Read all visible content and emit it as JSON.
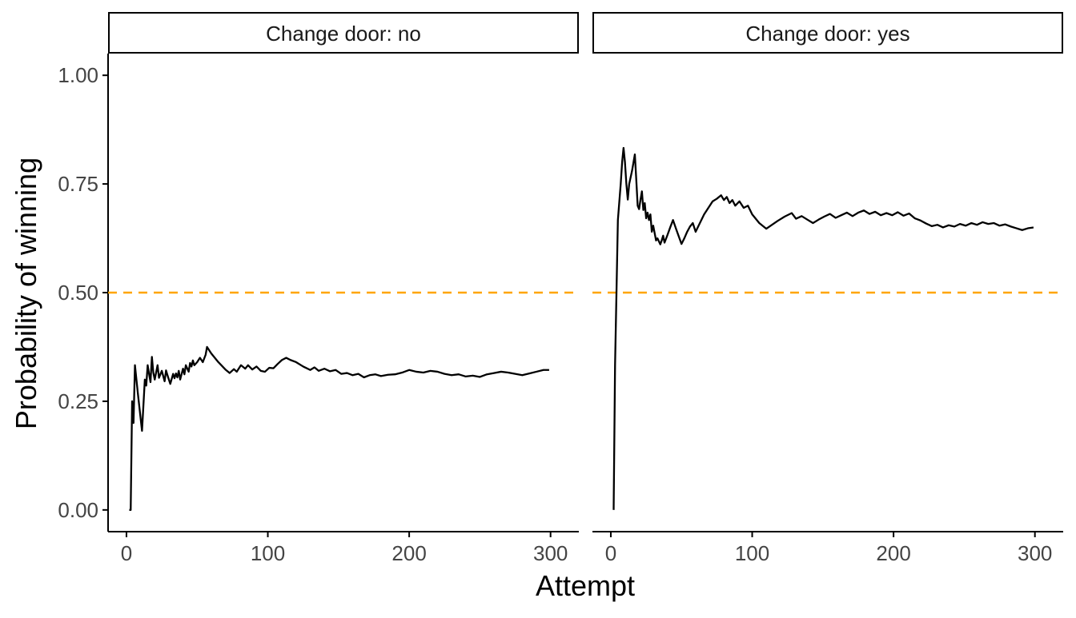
{
  "chart_data": {
    "type": "line",
    "xlabel": "Attempt",
    "ylabel": "Probability of winning",
    "xlim": [
      -13,
      320
    ],
    "ylim": [
      -0.05,
      1.05
    ],
    "x_ticks": [
      0,
      100,
      200,
      300
    ],
    "x_tick_labels": [
      "0",
      "100",
      "200",
      "300"
    ],
    "y_ticks": [
      0,
      0.25,
      0.5,
      0.75,
      1.0
    ],
    "y_tick_labels": [
      "0.00",
      "0.25",
      "0.50",
      "0.75",
      "1.00"
    ],
    "grid": false,
    "reference_line": {
      "y": 0.5,
      "color": "#FFA500",
      "style": "dashed"
    },
    "line_color": "#000000",
    "panels": [
      {
        "strip": "Change door: no",
        "points": [
          [
            2,
            0.0
          ],
          [
            3,
            0.0
          ],
          [
            4,
            0.25
          ],
          [
            5,
            0.2
          ],
          [
            6,
            0.333
          ],
          [
            8,
            0.27
          ],
          [
            11,
            0.182
          ],
          [
            13,
            0.3
          ],
          [
            14,
            0.286
          ],
          [
            15,
            0.333
          ],
          [
            16,
            0.313
          ],
          [
            17,
            0.294
          ],
          [
            18,
            0.352
          ],
          [
            19,
            0.316
          ],
          [
            20,
            0.3
          ],
          [
            22,
            0.333
          ],
          [
            23,
            0.304
          ],
          [
            25,
            0.32
          ],
          [
            26,
            0.308
          ],
          [
            27,
            0.296
          ],
          [
            28,
            0.321
          ],
          [
            29,
            0.31
          ],
          [
            30,
            0.3
          ],
          [
            31,
            0.29
          ],
          [
            33,
            0.313
          ],
          [
            34,
            0.303
          ],
          [
            35,
            0.314
          ],
          [
            36,
            0.305
          ],
          [
            37,
            0.32
          ],
          [
            38,
            0.3
          ],
          [
            40,
            0.325
          ],
          [
            41,
            0.312
          ],
          [
            42,
            0.333
          ],
          [
            44,
            0.318
          ],
          [
            45,
            0.338
          ],
          [
            46,
            0.33
          ],
          [
            47,
            0.344
          ],
          [
            48,
            0.333
          ],
          [
            50,
            0.34
          ],
          [
            52,
            0.35
          ],
          [
            54,
            0.34
          ],
          [
            56,
            0.357
          ],
          [
            57,
            0.375
          ],
          [
            60,
            0.36
          ],
          [
            65,
            0.34
          ],
          [
            70,
            0.323
          ],
          [
            73,
            0.315
          ],
          [
            76,
            0.324
          ],
          [
            78,
            0.318
          ],
          [
            81,
            0.333
          ],
          [
            84,
            0.325
          ],
          [
            86,
            0.333
          ],
          [
            89,
            0.323
          ],
          [
            92,
            0.33
          ],
          [
            95,
            0.32
          ],
          [
            98,
            0.318
          ],
          [
            101,
            0.327
          ],
          [
            104,
            0.326
          ],
          [
            107,
            0.336
          ],
          [
            110,
            0.345
          ],
          [
            113,
            0.35
          ],
          [
            116,
            0.345
          ],
          [
            120,
            0.34
          ],
          [
            125,
            0.33
          ],
          [
            130,
            0.322
          ],
          [
            133,
            0.328
          ],
          [
            136,
            0.32
          ],
          [
            140,
            0.325
          ],
          [
            144,
            0.319
          ],
          [
            148,
            0.322
          ],
          [
            152,
            0.313
          ],
          [
            156,
            0.315
          ],
          [
            160,
            0.31
          ],
          [
            164,
            0.313
          ],
          [
            168,
            0.305
          ],
          [
            172,
            0.31
          ],
          [
            176,
            0.312
          ],
          [
            180,
            0.308
          ],
          [
            185,
            0.311
          ],
          [
            190,
            0.312
          ],
          [
            195,
            0.316
          ],
          [
            200,
            0.322
          ],
          [
            205,
            0.318
          ],
          [
            210,
            0.316
          ],
          [
            215,
            0.32
          ],
          [
            220,
            0.318
          ],
          [
            225,
            0.313
          ],
          [
            230,
            0.31
          ],
          [
            235,
            0.312
          ],
          [
            240,
            0.307
          ],
          [
            245,
            0.309
          ],
          [
            250,
            0.306
          ],
          [
            255,
            0.312
          ],
          [
            260,
            0.315
          ],
          [
            265,
            0.318
          ],
          [
            270,
            0.316
          ],
          [
            275,
            0.313
          ],
          [
            280,
            0.31
          ],
          [
            285,
            0.314
          ],
          [
            290,
            0.318
          ],
          [
            295,
            0.322
          ],
          [
            299,
            0.322
          ]
        ]
      },
      {
        "strip": "Change door: yes",
        "points": [
          [
            2,
            0.0
          ],
          [
            3,
            0.333
          ],
          [
            4,
            0.5
          ],
          [
            5,
            0.667
          ],
          [
            7,
            0.75
          ],
          [
            8,
            0.8
          ],
          [
            9,
            0.833
          ],
          [
            10,
            0.8
          ],
          [
            11,
            0.75
          ],
          [
            12,
            0.714
          ],
          [
            13,
            0.75
          ],
          [
            15,
            0.78
          ],
          [
            17,
            0.818
          ],
          [
            18,
            0.76
          ],
          [
            19,
            0.7
          ],
          [
            20,
            0.692
          ],
          [
            21,
            0.714
          ],
          [
            22,
            0.733
          ],
          [
            23,
            0.69
          ],
          [
            24,
            0.706
          ],
          [
            25,
            0.671
          ],
          [
            26,
            0.684
          ],
          [
            27,
            0.667
          ],
          [
            28,
            0.68
          ],
          [
            29,
            0.64
          ],
          [
            30,
            0.654
          ],
          [
            32,
            0.62
          ],
          [
            33,
            0.625
          ],
          [
            35,
            0.611
          ],
          [
            36,
            0.62
          ],
          [
            37,
            0.631
          ],
          [
            38,
            0.615
          ],
          [
            40,
            0.632
          ],
          [
            42,
            0.65
          ],
          [
            44,
            0.667
          ],
          [
            46,
            0.648
          ],
          [
            48,
            0.63
          ],
          [
            50,
            0.612
          ],
          [
            52,
            0.625
          ],
          [
            54,
            0.64
          ],
          [
            56,
            0.652
          ],
          [
            58,
            0.66
          ],
          [
            60,
            0.64
          ],
          [
            63,
            0.66
          ],
          [
            66,
            0.68
          ],
          [
            69,
            0.695
          ],
          [
            72,
            0.71
          ],
          [
            75,
            0.716
          ],
          [
            78,
            0.724
          ],
          [
            80,
            0.713
          ],
          [
            82,
            0.72
          ],
          [
            84,
            0.706
          ],
          [
            86,
            0.713
          ],
          [
            88,
            0.7
          ],
          [
            91,
            0.71
          ],
          [
            94,
            0.695
          ],
          [
            97,
            0.7
          ],
          [
            100,
            0.68
          ],
          [
            105,
            0.66
          ],
          [
            110,
            0.647
          ],
          [
            114,
            0.656
          ],
          [
            118,
            0.665
          ],
          [
            123,
            0.675
          ],
          [
            128,
            0.683
          ],
          [
            131,
            0.67
          ],
          [
            135,
            0.676
          ],
          [
            139,
            0.668
          ],
          [
            143,
            0.66
          ],
          [
            147,
            0.668
          ],
          [
            151,
            0.675
          ],
          [
            155,
            0.681
          ],
          [
            159,
            0.672
          ],
          [
            163,
            0.678
          ],
          [
            167,
            0.684
          ],
          [
            171,
            0.676
          ],
          [
            175,
            0.684
          ],
          [
            179,
            0.689
          ],
          [
            183,
            0.681
          ],
          [
            187,
            0.686
          ],
          [
            191,
            0.678
          ],
          [
            195,
            0.683
          ],
          [
            199,
            0.678
          ],
          [
            203,
            0.685
          ],
          [
            207,
            0.677
          ],
          [
            211,
            0.682
          ],
          [
            215,
            0.671
          ],
          [
            219,
            0.666
          ],
          [
            223,
            0.659
          ],
          [
            227,
            0.653
          ],
          [
            231,
            0.656
          ],
          [
            235,
            0.65
          ],
          [
            239,
            0.655
          ],
          [
            243,
            0.652
          ],
          [
            247,
            0.658
          ],
          [
            251,
            0.654
          ],
          [
            255,
            0.66
          ],
          [
            259,
            0.656
          ],
          [
            263,
            0.662
          ],
          [
            267,
            0.658
          ],
          [
            271,
            0.66
          ],
          [
            275,
            0.654
          ],
          [
            279,
            0.657
          ],
          [
            283,
            0.652
          ],
          [
            287,
            0.648
          ],
          [
            291,
            0.644
          ],
          [
            295,
            0.648
          ],
          [
            299,
            0.65
          ]
        ]
      }
    ]
  }
}
